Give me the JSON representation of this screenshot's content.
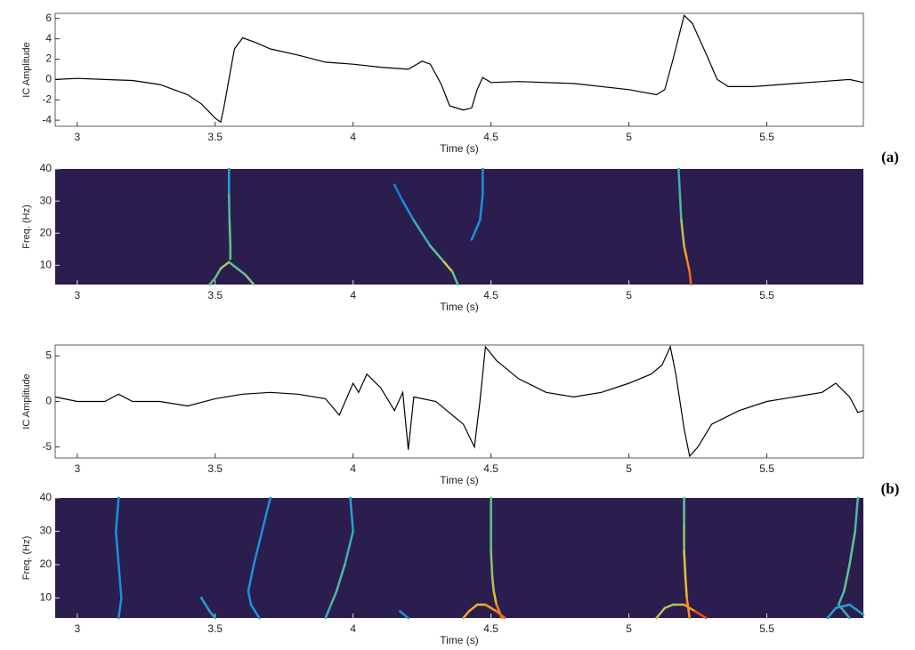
{
  "chart_data": [
    {
      "type": "line",
      "ylabel": "IC Amplitude",
      "xlabel": "Time (s)",
      "annotation": "(a)",
      "xlim": [
        2.92,
        5.85
      ],
      "xticks": [
        3,
        3.5,
        4,
        4.5,
        5,
        5.5
      ],
      "ylim": [
        -4.6,
        6.5
      ],
      "yticks": [
        -4,
        -2,
        0,
        2,
        4,
        6
      ],
      "color": "#000000",
      "x": [
        2.92,
        3.0,
        3.1,
        3.2,
        3.3,
        3.4,
        3.45,
        3.5,
        3.52,
        3.53,
        3.55,
        3.57,
        3.6,
        3.65,
        3.7,
        3.8,
        3.9,
        4.0,
        4.1,
        4.2,
        4.25,
        4.28,
        4.32,
        4.35,
        4.4,
        4.43,
        4.45,
        4.47,
        4.5,
        4.6,
        4.8,
        5.0,
        5.1,
        5.13,
        5.16,
        5.2,
        5.23,
        5.28,
        5.32,
        5.36,
        5.45,
        5.6,
        5.7,
        5.8,
        5.85
      ],
      "values": [
        0,
        0.1,
        0,
        -0.1,
        -0.5,
        -1.5,
        -2.4,
        -3.8,
        -4.2,
        -3.0,
        0,
        3.0,
        4.1,
        3.6,
        3.0,
        2.4,
        1.7,
        1.5,
        1.2,
        1.0,
        1.8,
        1.5,
        -0.5,
        -2.6,
        -3.0,
        -2.8,
        -1.0,
        0.2,
        -0.3,
        -0.2,
        -0.4,
        -1.0,
        -1.5,
        -1.0,
        2.0,
        6.3,
        5.5,
        2.5,
        0,
        -0.7,
        -0.7,
        -0.4,
        -0.2,
        0,
        -0.3
      ]
    },
    {
      "type": "spectrogram",
      "ylabel": "Freq. (Hz)",
      "xlabel": "Time (s)",
      "xlim": [
        2.92,
        5.85
      ],
      "xticks": [
        3,
        3.5,
        4,
        4.5,
        5,
        5.5
      ],
      "ylim": [
        4,
        40
      ],
      "yticks": [
        10,
        20,
        30,
        40
      ],
      "background": "#2b1d4e",
      "clim": [
        0,
        1
      ],
      "colormap": [
        "#352a87",
        "#0f5cdd",
        "#1e9fd6",
        "#5fc58e",
        "#e8c43a",
        "#f98c1c",
        "#e4331e"
      ],
      "ridges": [
        {
          "x": [
            3.55,
            3.55,
            3.552,
            3.555,
            3.555
          ],
          "y": [
            40,
            32,
            24,
            16,
            12
          ],
          "values": [
            0.3,
            0.35,
            0.45,
            0.5,
            0.5
          ]
        },
        {
          "x": [
            3.48,
            3.5,
            3.52,
            3.55,
            3.58,
            3.61,
            3.64
          ],
          "y": [
            4,
            6,
            9,
            11,
            9,
            7,
            4
          ],
          "values": [
            0.6,
            0.5,
            0.5,
            0.6,
            0.5,
            0.5,
            0.55
          ]
        },
        {
          "x": [
            4.15,
            4.18,
            4.22,
            4.28,
            4.33,
            4.36,
            4.38
          ],
          "y": [
            35,
            30,
            24,
            16,
            11,
            8,
            4
          ],
          "values": [
            0.2,
            0.25,
            0.3,
            0.4,
            0.5,
            0.65,
            0.5
          ]
        },
        {
          "x": [
            4.47,
            4.47,
            4.46,
            4.43
          ],
          "y": [
            40,
            32,
            24,
            18
          ],
          "values": [
            0.3,
            0.3,
            0.3,
            0.3
          ]
        },
        {
          "x": [
            5.18,
            5.185,
            5.19,
            5.2,
            5.21,
            5.22,
            5.225
          ],
          "y": [
            40,
            32,
            24,
            16,
            12,
            8,
            4
          ],
          "values": [
            0.35,
            0.4,
            0.45,
            0.6,
            0.75,
            0.85,
            0.9
          ]
        }
      ]
    },
    {
      "type": "line",
      "ylabel": "IC Amplitude",
      "xlabel": "Time (s)",
      "annotation": "(b)",
      "xlim": [
        2.92,
        5.85
      ],
      "xticks": [
        3,
        3.5,
        4,
        4.5,
        5,
        5.5
      ],
      "ylim": [
        -6.2,
        6.2
      ],
      "yticks": [
        -5,
        0,
        5
      ],
      "color": "#000000",
      "x": [
        2.92,
        3.0,
        3.1,
        3.15,
        3.2,
        3.3,
        3.4,
        3.5,
        3.6,
        3.7,
        3.8,
        3.9,
        3.95,
        4.0,
        4.02,
        4.05,
        4.1,
        4.15,
        4.18,
        4.2,
        4.22,
        4.3,
        4.4,
        4.44,
        4.46,
        4.48,
        4.52,
        4.6,
        4.7,
        4.8,
        4.9,
        5.0,
        5.08,
        5.12,
        5.15,
        5.17,
        5.2,
        5.22,
        5.25,
        5.3,
        5.4,
        5.5,
        5.6,
        5.7,
        5.75,
        5.8,
        5.83,
        5.85
      ],
      "values": [
        0.5,
        0,
        0,
        0.8,
        0,
        0,
        -0.5,
        0.3,
        0.8,
        1.0,
        0.8,
        0.3,
        -1.5,
        2.0,
        1.0,
        3.0,
        1.5,
        -1.0,
        1.0,
        -5.3,
        0.5,
        0,
        -2.5,
        -5.0,
        0,
        6.0,
        4.5,
        2.5,
        1.0,
        0.5,
        1.0,
        2.0,
        3.0,
        4.0,
        6.0,
        3.0,
        -3.0,
        -6.0,
        -5.0,
        -2.5,
        -1.0,
        0,
        0.5,
        1.0,
        2.0,
        0.5,
        -1.2,
        -1.0
      ]
    },
    {
      "type": "spectrogram",
      "ylabel": "Freq. (Hz)",
      "xlabel": "Time (s)",
      "xlim": [
        2.92,
        5.85
      ],
      "xticks": [
        3,
        3.5,
        4,
        4.5,
        5,
        5.5
      ],
      "ylim": [
        4,
        40
      ],
      "yticks": [
        10,
        20,
        30,
        40
      ],
      "background": "#2b1d4e",
      "clim": [
        0,
        1
      ],
      "colormap": [
        "#352a87",
        "#0f5cdd",
        "#1e9fd6",
        "#5fc58e",
        "#e8c43a",
        "#f98c1c",
        "#e4331e"
      ],
      "ridges": [
        {
          "x": [
            3.15,
            3.14,
            3.15,
            3.16,
            3.15
          ],
          "y": [
            40,
            30,
            20,
            10,
            4
          ],
          "values": [
            0.3,
            0.3,
            0.3,
            0.3,
            0.3
          ]
        },
        {
          "x": [
            3.45,
            3.48,
            3.5
          ],
          "y": [
            10,
            6,
            4
          ],
          "values": [
            0.35,
            0.35,
            0.35
          ]
        },
        {
          "x": [
            3.7,
            3.67,
            3.64,
            3.62,
            3.63,
            3.66
          ],
          "y": [
            40,
            30,
            20,
            12,
            8,
            4
          ],
          "values": [
            0.3,
            0.3,
            0.3,
            0.3,
            0.3,
            0.3
          ]
        },
        {
          "x": [
            3.99,
            4.0,
            3.97,
            3.94,
            3.92,
            3.9
          ],
          "y": [
            40,
            30,
            20,
            12,
            8,
            4
          ],
          "values": [
            0.3,
            0.35,
            0.4,
            0.45,
            0.45,
            0.4
          ]
        },
        {
          "x": [
            4.5,
            4.5,
            4.5,
            4.505,
            4.51,
            4.52,
            4.54
          ],
          "y": [
            40,
            32,
            24,
            16,
            12,
            8,
            4
          ],
          "values": [
            0.45,
            0.5,
            0.5,
            0.55,
            0.6,
            0.7,
            0.85
          ]
        },
        {
          "x": [
            4.4,
            4.42,
            4.45,
            4.48,
            4.52,
            4.55
          ],
          "y": [
            4,
            6,
            8,
            8,
            6,
            4
          ],
          "values": [
            0.7,
            0.75,
            0.75,
            0.7,
            0.8,
            0.9
          ]
        },
        {
          "x": [
            5.2,
            5.2,
            5.2,
            5.205,
            5.21,
            5.22
          ],
          "y": [
            40,
            32,
            24,
            16,
            10,
            4
          ],
          "values": [
            0.45,
            0.5,
            0.55,
            0.65,
            0.7,
            0.8
          ]
        },
        {
          "x": [
            5.1,
            5.13,
            5.16,
            5.2,
            5.24,
            5.28
          ],
          "y": [
            4,
            7,
            8,
            8,
            6,
            4
          ],
          "values": [
            0.7,
            0.6,
            0.6,
            0.6,
            0.8,
            0.95
          ]
        },
        {
          "x": [
            5.83,
            5.82,
            5.8,
            5.78,
            5.76,
            5.8
          ],
          "y": [
            40,
            30,
            20,
            12,
            8,
            4
          ],
          "values": [
            0.35,
            0.45,
            0.5,
            0.5,
            0.45,
            0.4
          ]
        },
        {
          "x": [
            5.72,
            5.75,
            5.8,
            5.85
          ],
          "y": [
            4,
            7,
            8,
            5
          ],
          "values": [
            0.35,
            0.35,
            0.35,
            0.35
          ]
        },
        {
          "x": [
            4.17,
            4.2
          ],
          "y": [
            6,
            4
          ],
          "values": [
            0.3,
            0.3
          ]
        }
      ]
    }
  ]
}
